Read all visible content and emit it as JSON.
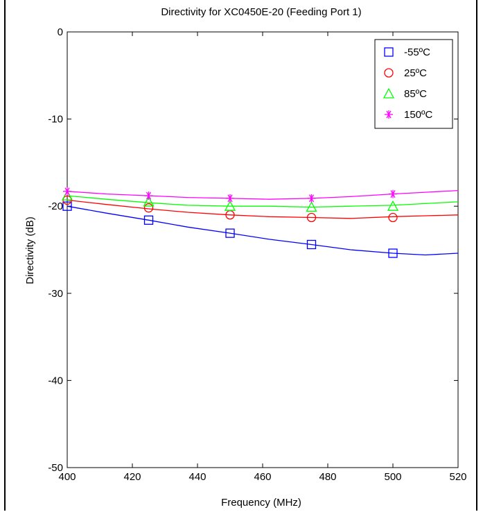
{
  "chart_data": {
    "type": "line",
    "title": "Directivity for XC0450E-20 (Feeding Port 1)",
    "xlabel": "Frequency (MHz)",
    "ylabel": "Directivity (dB)",
    "xlim": [
      400,
      520
    ],
    "ylim": [
      -50,
      0
    ],
    "xticks": [
      400,
      420,
      440,
      460,
      480,
      500,
      520
    ],
    "yticks": [
      0,
      -10,
      -20,
      -30,
      -40,
      -50
    ],
    "grid": true,
    "grid_style": "dotted",
    "legend_position": "top-right",
    "series": [
      {
        "name": "-55ºC",
        "color": "#0000ff",
        "marker": "square",
        "markers": [
          [
            400,
            -20.0
          ],
          [
            425,
            -21.6
          ],
          [
            450,
            -23.1
          ],
          [
            475,
            -24.4
          ],
          [
            500,
            -25.4
          ]
        ],
        "curve": [
          [
            400,
            -20.0
          ],
          [
            412,
            -20.8
          ],
          [
            425,
            -21.6
          ],
          [
            437,
            -22.4
          ],
          [
            450,
            -23.1
          ],
          [
            462,
            -23.8
          ],
          [
            475,
            -24.4
          ],
          [
            487,
            -25.0
          ],
          [
            500,
            -25.4
          ],
          [
            510,
            -25.6
          ],
          [
            520,
            -25.4
          ]
        ]
      },
      {
        "name": "25ºC",
        "color": "#ff0000",
        "marker": "circle",
        "markers": [
          [
            400,
            -19.3
          ],
          [
            425,
            -20.2
          ],
          [
            450,
            -21.0
          ],
          [
            475,
            -21.3
          ],
          [
            500,
            -21.3
          ]
        ],
        "curve": [
          [
            400,
            -19.3
          ],
          [
            412,
            -19.8
          ],
          [
            425,
            -20.3
          ],
          [
            437,
            -20.7
          ],
          [
            450,
            -21.0
          ],
          [
            462,
            -21.2
          ],
          [
            475,
            -21.3
          ],
          [
            487,
            -21.4
          ],
          [
            500,
            -21.2
          ],
          [
            510,
            -21.1
          ],
          [
            520,
            -21.0
          ]
        ]
      },
      {
        "name": "85ºC",
        "color": "#00ff00",
        "marker": "triangle",
        "markers": [
          [
            400,
            -18.8
          ],
          [
            425,
            -19.5
          ],
          [
            450,
            -20.0
          ],
          [
            475,
            -20.1
          ],
          [
            500,
            -20.0
          ]
        ],
        "curve": [
          [
            400,
            -18.8
          ],
          [
            412,
            -19.2
          ],
          [
            425,
            -19.6
          ],
          [
            437,
            -19.9
          ],
          [
            450,
            -20.0
          ],
          [
            462,
            -20.0
          ],
          [
            475,
            -20.1
          ],
          [
            487,
            -20.0
          ],
          [
            500,
            -19.9
          ],
          [
            510,
            -19.7
          ],
          [
            520,
            -19.5
          ]
        ]
      },
      {
        "name": "150ºC",
        "color": "#ff00ff",
        "marker": "star",
        "markers": [
          [
            400,
            -18.3
          ],
          [
            425,
            -18.8
          ],
          [
            450,
            -19.1
          ],
          [
            475,
            -19.1
          ],
          [
            500,
            -18.6
          ]
        ],
        "curve": [
          [
            400,
            -18.3
          ],
          [
            412,
            -18.6
          ],
          [
            425,
            -18.8
          ],
          [
            437,
            -19.0
          ],
          [
            450,
            -19.1
          ],
          [
            462,
            -19.2
          ],
          [
            475,
            -19.1
          ],
          [
            487,
            -18.9
          ],
          [
            500,
            -18.6
          ],
          [
            510,
            -18.4
          ],
          [
            520,
            -18.2
          ]
        ]
      }
    ]
  }
}
